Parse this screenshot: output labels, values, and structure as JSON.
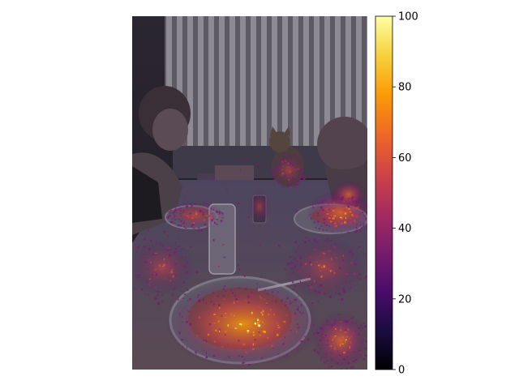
{
  "chart_data": {
    "type": "heatmap",
    "title": "",
    "xlabel": "",
    "ylabel": "",
    "axes_visible": false,
    "background": "photograph of a family dinner table (person, cat, plates of food, glass, window blinds) overlaid with a saliency heatmap",
    "colormap": "inferno",
    "colorbar": {
      "min": 0,
      "max": 100,
      "ticks": [
        0,
        20,
        40,
        60,
        80,
        100
      ],
      "tick_labels": [
        "0",
        "20",
        "40",
        "60",
        "80",
        "100"
      ],
      "position": "right"
    },
    "hotspots": [
      {
        "region": "large plate in foreground",
        "level": 85
      },
      {
        "region": "right plate with food",
        "level": 65
      },
      {
        "region": "left plate",
        "level": 45
      },
      {
        "region": "table surface",
        "level": 40
      },
      {
        "region": "cat",
        "level": 30
      },
      {
        "region": "can",
        "level": 35
      }
    ]
  },
  "colors": {
    "inferno": [
      "#000004",
      "#1b0c41",
      "#4a0c6b",
      "#781c6d",
      "#a52c60",
      "#cf4446",
      "#ed6925",
      "#fb9b06",
      "#f7d13d",
      "#fcffa4"
    ]
  }
}
